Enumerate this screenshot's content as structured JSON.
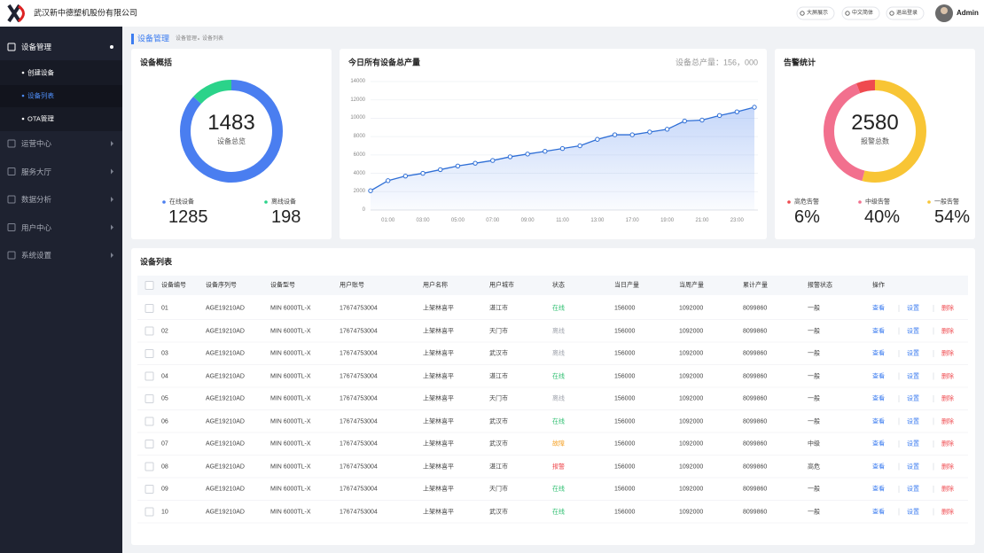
{
  "header": {
    "company": "武汉新中德塑机股份有限公司",
    "actions": [
      "大屏展示",
      "中文简体",
      "退出登录"
    ],
    "user": "Admin"
  },
  "sidebar": {
    "menu": [
      {
        "label": "设备管理",
        "children": [
          "创建设备",
          "设备列表",
          "OTA管理"
        ]
      },
      {
        "label": "运营中心"
      },
      {
        "label": "服务大厅"
      },
      {
        "label": "数据分析"
      },
      {
        "label": "用户中心"
      },
      {
        "label": "系统设置"
      }
    ]
  },
  "breadcrumb": {
    "title": "设备管理",
    "path": [
      "设备管理",
      "设备列表"
    ]
  },
  "overview": {
    "title": "设备概括",
    "total": 1483,
    "total_label": "设备总览",
    "chart": {
      "type": "donut",
      "labels": [
        "在线设备",
        "离线设备"
      ],
      "values": [
        1285,
        198
      ],
      "colors": [
        "#4a7ef0",
        "#2bd38a"
      ]
    }
  },
  "production": {
    "title": "今日所有设备总产量",
    "total": "设备总产量：156，000",
    "chart": {
      "type": "line",
      "categories": [
        null,
        "01:00",
        null,
        "03:00",
        null,
        "05:00",
        null,
        "07:00",
        null,
        "09:00",
        null,
        "11:00",
        null,
        "13:00",
        null,
        "17:00",
        null,
        "19:00",
        null,
        "21:00",
        null,
        "23:00",
        null
      ],
      "values": [
        2100,
        3200,
        3700,
        4000,
        4400,
        4800,
        5100,
        5400,
        5800,
        6100,
        6400,
        6700,
        7000,
        7700,
        8200,
        8200,
        8500,
        8800,
        9700,
        9800,
        10300,
        10700,
        11200
      ],
      "color": "#2f6fd6",
      "ylim": [
        0,
        14000
      ],
      "yticks": [
        0,
        2000,
        4000,
        6000,
        8000,
        10000,
        12000,
        14000
      ],
      "grid": true
    }
  },
  "alarm": {
    "title": "告警统计",
    "total": 2580,
    "total_label": "报警总数",
    "chart": {
      "type": "donut",
      "labels": [
        "高危告警",
        "中级告警",
        "一般告警"
      ],
      "values": [
        6,
        40,
        54
      ],
      "value_labels": [
        "6%",
        "40%",
        "54%"
      ],
      "colors": [
        "#ef4a4f",
        "#f2708e",
        "#f8c535"
      ]
    }
  },
  "table": {
    "title": "设备列表",
    "headers": [
      "设备编号",
      "设备序列号",
      "设备型号",
      "用户账号",
      "用户名称",
      "用户城市",
      "状态",
      "当日产量",
      "当周产量",
      "累计产量",
      "报警状态",
      "操作"
    ],
    "actions": [
      "查看",
      "设置",
      "删除"
    ],
    "action_colors": [
      "#3b7cf0",
      "#3b7cf0",
      "#ef4a4f"
    ],
    "rows": [
      [
        "01",
        "AGE19210AD",
        "MIN 6000TL-X",
        "17674753004",
        "上架林喜平",
        "湛江市",
        "在线",
        "156000",
        "1092000",
        "8099860",
        "一般"
      ],
      [
        "02",
        "AGE19210AD",
        "MIN 6000TL-X",
        "17674753004",
        "上架林喜平",
        "天门市",
        "离线",
        "156000",
        "1092000",
        "8099860",
        "一般"
      ],
      [
        "03",
        "AGE19210AD",
        "MIN 6000TL-X",
        "17674753004",
        "上架林喜平",
        "武汉市",
        "离线",
        "156000",
        "1092000",
        "8099860",
        "一般"
      ],
      [
        "04",
        "AGE19210AD",
        "MIN 6000TL-X",
        "17674753004",
        "上架林喜平",
        "湛江市",
        "在线",
        "156000",
        "1092000",
        "8099860",
        "一般"
      ],
      [
        "05",
        "AGE19210AD",
        "MIN 6000TL-X",
        "17674753004",
        "上架林喜平",
        "天门市",
        "离线",
        "156000",
        "1092000",
        "8099860",
        "一般"
      ],
      [
        "06",
        "AGE19210AD",
        "MIN 6000TL-X",
        "17674753004",
        "上架林喜平",
        "武汉市",
        "在线",
        "156000",
        "1092000",
        "8099860",
        "一般"
      ],
      [
        "07",
        "AGE19210AD",
        "MIN 6000TL-X",
        "17674753004",
        "上架林喜平",
        "武汉市",
        "故障",
        "156000",
        "1092000",
        "8099860",
        "中级"
      ],
      [
        "08",
        "AGE19210AD",
        "MIN 6000TL-X",
        "17674753004",
        "上架林喜平",
        "湛江市",
        "报警",
        "156000",
        "1092000",
        "8099860",
        "高危"
      ],
      [
        "09",
        "AGE19210AD",
        "MIN 6000TL-X",
        "17674753004",
        "上架林喜平",
        "天门市",
        "在线",
        "156000",
        "1092000",
        "8099860",
        "一般"
      ],
      [
        "10",
        "AGE19210AD",
        "MIN 6000TL-X",
        "17674753004",
        "上架林喜平",
        "武汉市",
        "在线",
        "156000",
        "1092000",
        "8099860",
        "一般"
      ]
    ],
    "status_colors": [
      "#2fbf71",
      "#a0a4ad",
      "#a0a4ad",
      "#2fbf71",
      "#a0a4ad",
      "#2fbf71",
      "#f5a023",
      "#ef4a4f",
      "#2fbf71",
      "#2fbf71"
    ]
  }
}
